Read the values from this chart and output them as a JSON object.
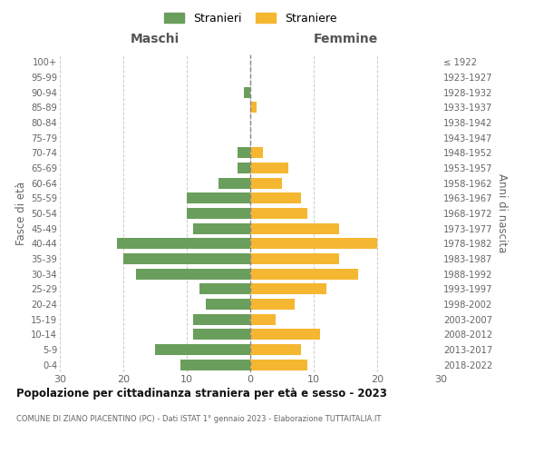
{
  "age_groups": [
    "0-4",
    "5-9",
    "10-14",
    "15-19",
    "20-24",
    "25-29",
    "30-34",
    "35-39",
    "40-44",
    "45-49",
    "50-54",
    "55-59",
    "60-64",
    "65-69",
    "70-74",
    "75-79",
    "80-84",
    "85-89",
    "90-94",
    "95-99",
    "100+"
  ],
  "birth_years": [
    "2018-2022",
    "2013-2017",
    "2008-2012",
    "2003-2007",
    "1998-2002",
    "1993-1997",
    "1988-1992",
    "1983-1987",
    "1978-1982",
    "1973-1977",
    "1968-1972",
    "1963-1967",
    "1958-1962",
    "1953-1957",
    "1948-1952",
    "1943-1947",
    "1938-1942",
    "1933-1937",
    "1928-1932",
    "1923-1927",
    "≤ 1922"
  ],
  "males": [
    11,
    15,
    9,
    9,
    7,
    8,
    18,
    20,
    21,
    9,
    10,
    10,
    5,
    2,
    2,
    0,
    0,
    0,
    1,
    0,
    0
  ],
  "females": [
    9,
    8,
    11,
    4,
    7,
    12,
    17,
    14,
    20,
    14,
    9,
    8,
    5,
    6,
    2,
    0,
    0,
    1,
    0,
    0,
    0
  ],
  "male_color": "#6a9e5c",
  "female_color": "#f5b731",
  "title_main": "Popolazione per cittadinanza straniera per età e sesso - 2023",
  "title_sub": "COMUNE DI ZIANO PIACENTINO (PC) - Dati ISTAT 1° gennaio 2023 - Elaborazione TUTTAITALIA.IT",
  "xlabel_left": "Maschi",
  "xlabel_right": "Femmine",
  "ylabel_left": "Fasce di età",
  "ylabel_right": "Anni di nascita",
  "legend_male": "Stranieri",
  "legend_female": "Straniere",
  "xlim": 30,
  "background_color": "#ffffff",
  "grid_color": "#cccccc"
}
